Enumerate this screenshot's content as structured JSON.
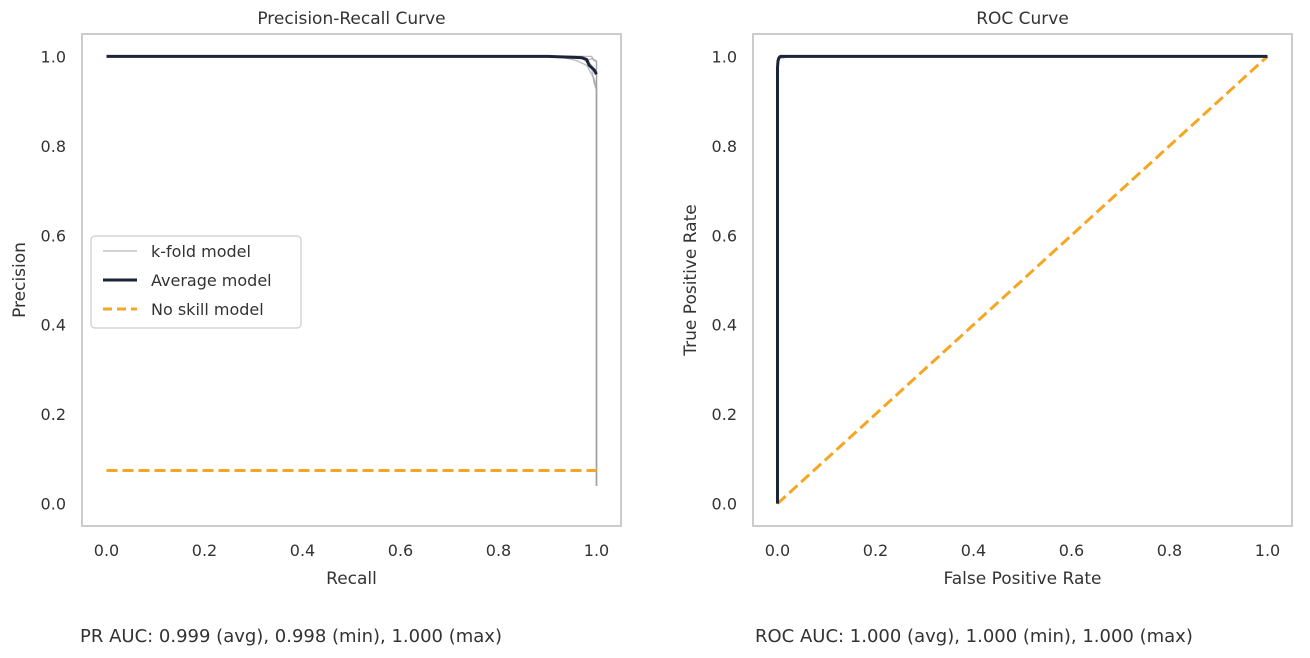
{
  "colors": {
    "kfold": "#a0a0a0",
    "average": "#1b2438",
    "noskill": "#f5a623",
    "frame": "#cccccc"
  },
  "chart_data": [
    {
      "type": "line",
      "title": "Precision-Recall Curve",
      "xlabel": "Recall",
      "ylabel": "Precision",
      "xlim": [
        -0.05,
        1.05
      ],
      "ylim": [
        -0.05,
        1.05
      ],
      "xticks": [
        "0.0",
        "0.2",
        "0.4",
        "0.6",
        "0.8",
        "1.0"
      ],
      "yticks": [
        "0.0",
        "0.2",
        "0.4",
        "0.6",
        "0.8",
        "1.0"
      ],
      "grid": false,
      "legend": {
        "position": "center-left",
        "entries": [
          "k-fold model",
          "Average model",
          "No skill model"
        ]
      },
      "series": [
        {
          "name": "k-fold model",
          "style": "thin",
          "x": [
            0,
            0.92,
            0.95,
            0.96,
            0.97,
            0.98,
            0.985,
            0.99,
            0.995,
            1.0,
            1.0
          ],
          "y": [
            1.0,
            1.0,
            0.993,
            0.99,
            0.985,
            0.98,
            0.97,
            0.96,
            0.95,
            0.93,
            0.04
          ]
        },
        {
          "name": "k-fold model",
          "style": "thin",
          "x": [
            0,
            0.94,
            0.97,
            0.98,
            0.99,
            0.995,
            1.0,
            1.0
          ],
          "y": [
            1.0,
            1.0,
            0.997,
            0.99,
            0.98,
            0.97,
            0.96,
            0.04
          ]
        },
        {
          "name": "k-fold model",
          "style": "thin",
          "x": [
            0,
            0.96,
            0.98,
            0.99,
            1.0,
            1.0
          ],
          "y": [
            1.0,
            1.0,
            0.99,
            0.995,
            0.99,
            0.04
          ]
        },
        {
          "name": "k-fold model",
          "style": "thin",
          "x": [
            0,
            0.97,
            0.985,
            0.99,
            0.995,
            1.0,
            1.0
          ],
          "y": [
            1.0,
            1.0,
            0.98,
            0.975,
            0.94,
            0.925,
            0.04
          ]
        },
        {
          "name": "k-fold model",
          "style": "thin",
          "x": [
            0,
            0.99,
            0.995,
            1.0,
            1.0
          ],
          "y": [
            1.0,
            1.0,
            0.99,
            0.99,
            0.04
          ]
        },
        {
          "name": "Average model",
          "style": "thick",
          "x": [
            0,
            0.9,
            0.95,
            0.97,
            0.98,
            0.985,
            0.99,
            0.995,
            1.0
          ],
          "y": [
            1.0,
            1.0,
            0.998,
            0.997,
            0.993,
            0.98,
            0.975,
            0.97,
            0.96
          ]
        },
        {
          "name": "No skill model",
          "style": "dashed",
          "x": [
            0,
            1
          ],
          "y": [
            0.074,
            0.074
          ]
        }
      ]
    },
    {
      "type": "line",
      "title": "ROC Curve",
      "xlabel": "False Positive Rate",
      "ylabel": "True Positive Rate",
      "xlim": [
        -0.05,
        1.05
      ],
      "ylim": [
        -0.05,
        1.05
      ],
      "xticks": [
        "0.0",
        "0.2",
        "0.4",
        "0.6",
        "0.8",
        "1.0"
      ],
      "yticks": [
        "0.0",
        "0.2",
        "0.4",
        "0.6",
        "0.8",
        "1.0"
      ],
      "grid": false,
      "legend": null,
      "series": [
        {
          "name": "k-fold model",
          "style": "thin",
          "x": [
            0,
            0,
            0.002,
            0.004,
            0.02,
            1.0
          ],
          "y": [
            0,
            0.97,
            0.985,
            0.998,
            1.0,
            1.0
          ]
        },
        {
          "name": "k-fold model",
          "style": "thin",
          "x": [
            0,
            0,
            0.003,
            0.03,
            1.0
          ],
          "y": [
            0,
            0.98,
            0.995,
            1.0,
            1.0
          ]
        },
        {
          "name": "Average model",
          "style": "thick",
          "x": [
            0,
            0,
            0.001,
            0.003,
            0.006,
            1.0
          ],
          "y": [
            0,
            0.975,
            0.99,
            0.997,
            1.0,
            1.0
          ]
        },
        {
          "name": "No skill model",
          "style": "dashed",
          "x": [
            0,
            1
          ],
          "y": [
            0,
            1
          ]
        }
      ]
    }
  ],
  "captions": {
    "pr": "PR AUC: 0.999 (avg), 0.998 (min), 1.000 (max)",
    "roc": "ROC AUC: 1.000 (avg), 1.000 (min), 1.000 (max)"
  }
}
